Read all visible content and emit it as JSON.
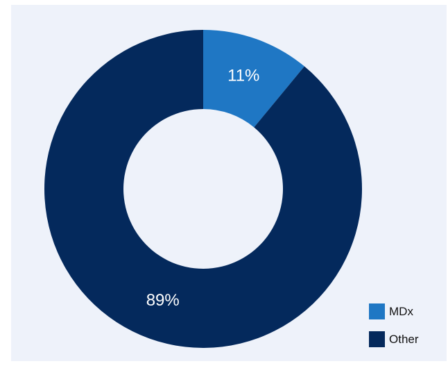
{
  "chart_data": {
    "type": "pie",
    "donut": true,
    "categories": [
      "MDx",
      "Other"
    ],
    "values": [
      11,
      89
    ],
    "labels": [
      "11%",
      "89%"
    ],
    "colors": [
      "#1f77c4",
      "#04295c"
    ],
    "title": "",
    "legend_position": "bottom-right"
  },
  "background_color": "#eef2fa"
}
